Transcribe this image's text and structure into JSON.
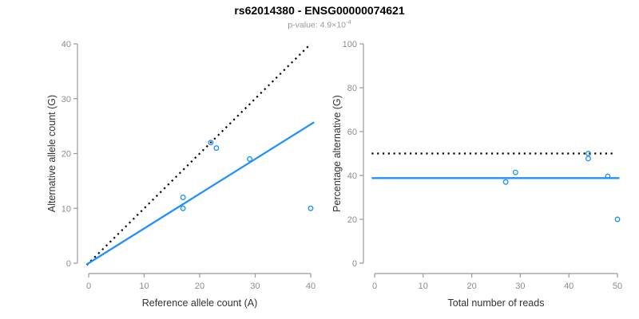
{
  "header": {
    "title": "rs62014380 - ENSG00000074621",
    "subtitle_main": "p-value: 4.9×10",
    "subtitle_exponent": "-4"
  },
  "colors": {
    "accent_blue": "#1E90FF",
    "line_black": "#000000",
    "axis_gray": "#999999",
    "tick_label_gray": "#8c8c8c",
    "axis_label_dark": "#333333",
    "title_black": "#000000",
    "subtitle_gray": "#999999",
    "background": "#ffffff"
  },
  "chart_data": [
    {
      "type": "scatter",
      "name": "allele-counts-scatter",
      "xlabel": "Reference allele count (A)",
      "ylabel": "Alternative allele count (G)",
      "xlim": [
        0,
        40
      ],
      "ylim": [
        0,
        40
      ],
      "xticks": [
        0,
        10,
        20,
        30,
        40
      ],
      "yticks": [
        0,
        10,
        20,
        30,
        40
      ],
      "grid": false,
      "legend": false,
      "points": [
        [
          17,
          10
        ],
        [
          17,
          12
        ],
        [
          22,
          22
        ],
        [
          23,
          21
        ],
        [
          29,
          19
        ],
        [
          40,
          10
        ]
      ],
      "lines": [
        {
          "name": "identity-line-y-equals-x",
          "style": "dotted",
          "color": "black",
          "x1": -0.35,
          "y1": -0.35,
          "x2": 40,
          "y2": 40
        },
        {
          "name": "fitted-allelic-ratio-line",
          "style": "solid",
          "color": "blue",
          "x1": -0.4,
          "y1": -0.25,
          "x2": 40.6,
          "y2": 25.7
        }
      ]
    },
    {
      "type": "scatter",
      "name": "percentage-vs-coverage-scatter",
      "xlabel": "Total number of reads",
      "ylabel": "Percentage alternative (G)",
      "xlim": [
        0,
        50
      ],
      "ylim": [
        0,
        100
      ],
      "xticks": [
        0,
        10,
        20,
        30,
        40,
        50
      ],
      "yticks": [
        0,
        20,
        40,
        60,
        80,
        100
      ],
      "grid": false,
      "legend": false,
      "points": [
        [
          27,
          37
        ],
        [
          29,
          41.4
        ],
        [
          44,
          47.7
        ],
        [
          44,
          50
        ],
        [
          48,
          39.6
        ],
        [
          50,
          20
        ]
      ],
      "lines": [
        {
          "name": "expected-50-percent-line",
          "style": "dotted",
          "color": "black",
          "x1": -0.6,
          "y1": 50,
          "x2": 49.3,
          "y2": 50
        },
        {
          "name": "mean-percentage-line",
          "style": "solid",
          "color": "blue",
          "x1": -0.6,
          "y1": 38.8,
          "x2": 50.4,
          "y2": 38.8
        }
      ]
    }
  ]
}
